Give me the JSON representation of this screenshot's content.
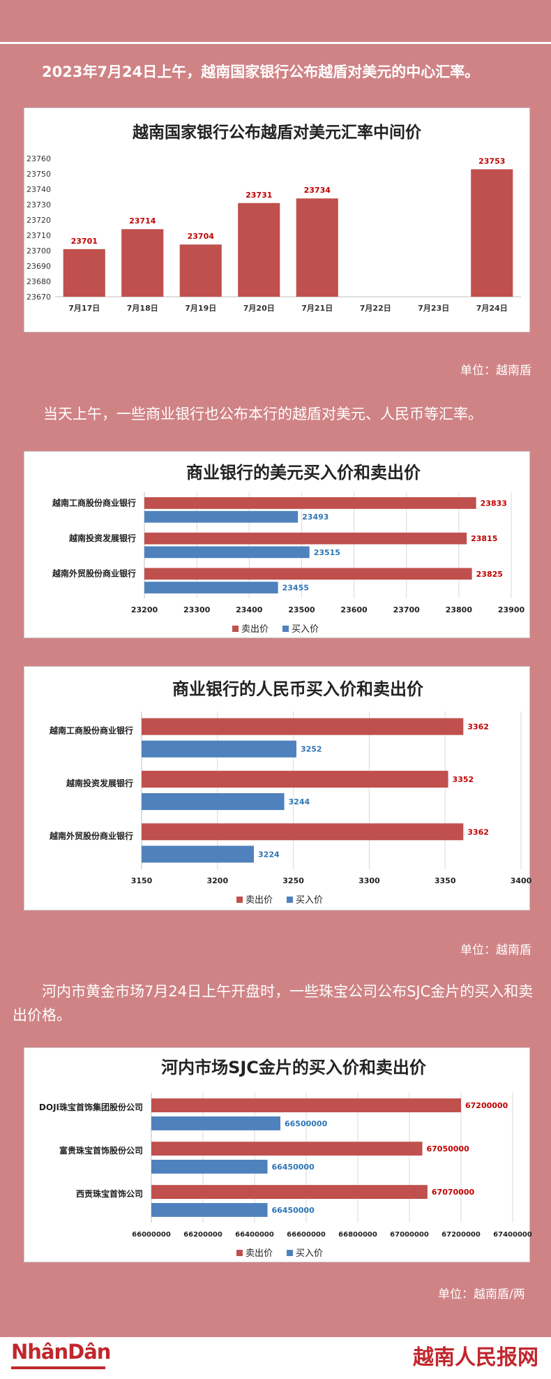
{
  "intro_text": "2023年7月24日上午，越南国家银行公布越盾对美元的中心汇率。",
  "unit1": "单位：越南盾",
  "para2": "当天上午，一些商业银行也公布本行的越盾对美元、人民币等汇率。",
  "unit2": "单位：越南盾",
  "para3": "河内市黄金市场7月24日上午开盘时，一些珠宝公司公布SJC金片的买入和卖出价格。",
  "unit3": "单位：越南盾/两",
  "footer": {
    "logo_left": "NhânDân",
    "logo_right": "越南人民报网"
  },
  "colors": {
    "sell": "#c0504d",
    "buy": "#4f81bd",
    "sell_label": "#c00000",
    "buy_label": "#2e75b6",
    "background": "#d08385"
  },
  "chart_data": [
    {
      "type": "bar",
      "title": "越南国家银行公布越盾对美元汇率中间价",
      "categories": [
        "7月17日",
        "7月18日",
        "7月19日",
        "7月20日",
        "7月21日",
        "7月22日",
        "7月23日",
        "7月24日"
      ],
      "values": [
        23701,
        23714,
        23704,
        23731,
        23734,
        null,
        null,
        23753
      ],
      "data_labels": [
        "23701",
        "23714",
        "23704",
        "23731",
        "23734",
        "",
        "",
        "23753"
      ],
      "ylim": [
        23670,
        23760
      ],
      "yticks": [
        23670,
        23680,
        23690,
        23700,
        23710,
        23720,
        23730,
        23740,
        23750,
        23760
      ],
      "ytick_labels": [
        "23670",
        "23680",
        "23690",
        "23700",
        "23710",
        "23720",
        "23730",
        "23740",
        "23750",
        "23760"
      ],
      "grid": false
    },
    {
      "type": "bar",
      "orientation": "horizontal",
      "title": "商业银行的美元买入价和卖出价",
      "categories": [
        "越南工商股份商业银行",
        "越南投资发展银行",
        "越南外贸股份商业银行"
      ],
      "series": [
        {
          "name": "卖出价",
          "values": [
            23833,
            23815,
            23825
          ],
          "labels": [
            "23833",
            "23815",
            "23825"
          ]
        },
        {
          "name": "买入价",
          "values": [
            23493,
            23515,
            23455
          ],
          "labels": [
            "23493",
            "23515",
            "23455"
          ]
        }
      ],
      "xlim": [
        23200,
        23900
      ],
      "xticks": [
        23200,
        23300,
        23400,
        23500,
        23600,
        23700,
        23800,
        23900
      ],
      "xtick_labels": [
        "23200",
        "23300",
        "23400",
        "23500",
        "23600",
        "23700",
        "23800",
        "23900"
      ],
      "legend": "bottom",
      "grid": true
    },
    {
      "type": "bar",
      "orientation": "horizontal",
      "title": "商业银行的人民币买入价和卖出价",
      "categories": [
        "越南工商股份商业银行",
        "越南投资发展银行",
        "越南外贸股份商业银行"
      ],
      "series": [
        {
          "name": "卖出价",
          "values": [
            3362,
            3352,
            3362
          ],
          "labels": [
            "3362",
            "3352",
            "3362"
          ]
        },
        {
          "name": "买入价",
          "values": [
            3252,
            3244,
            3224
          ],
          "labels": [
            "3252",
            "3244",
            "3224"
          ]
        }
      ],
      "xlim": [
        3150,
        3400
      ],
      "xticks": [
        3150,
        3200,
        3250,
        3300,
        3350,
        3400
      ],
      "xtick_labels": [
        "3150",
        "3200",
        "3250",
        "3300",
        "3350",
        "3400"
      ],
      "legend": "bottom",
      "grid": true
    },
    {
      "type": "bar",
      "orientation": "horizontal",
      "title": "河内市场SJC金片的买入价和卖出价",
      "categories": [
        "DOJI珠宝首饰集团股份公司",
        "富贵珠宝首饰股份公司",
        "西贡珠宝首饰公司"
      ],
      "series": [
        {
          "name": "卖出价",
          "values": [
            67200000,
            67050000,
            67070000
          ],
          "labels": [
            "67200000",
            "67050000",
            "67070000"
          ]
        },
        {
          "name": "买入价",
          "values": [
            66500000,
            66450000,
            66450000
          ],
          "labels": [
            "66500000",
            "66450000",
            "66450000"
          ]
        }
      ],
      "xlim": [
        66000000,
        67400000
      ],
      "xticks": [
        66000000,
        66200000,
        66400000,
        66600000,
        66800000,
        67000000,
        67200000,
        67400000
      ],
      "xtick_labels": [
        "66000000",
        "66200000",
        "66400000",
        "66600000",
        "66800000",
        "67000000",
        "67200000",
        "67400000"
      ],
      "legend": "bottom",
      "grid": true
    }
  ]
}
